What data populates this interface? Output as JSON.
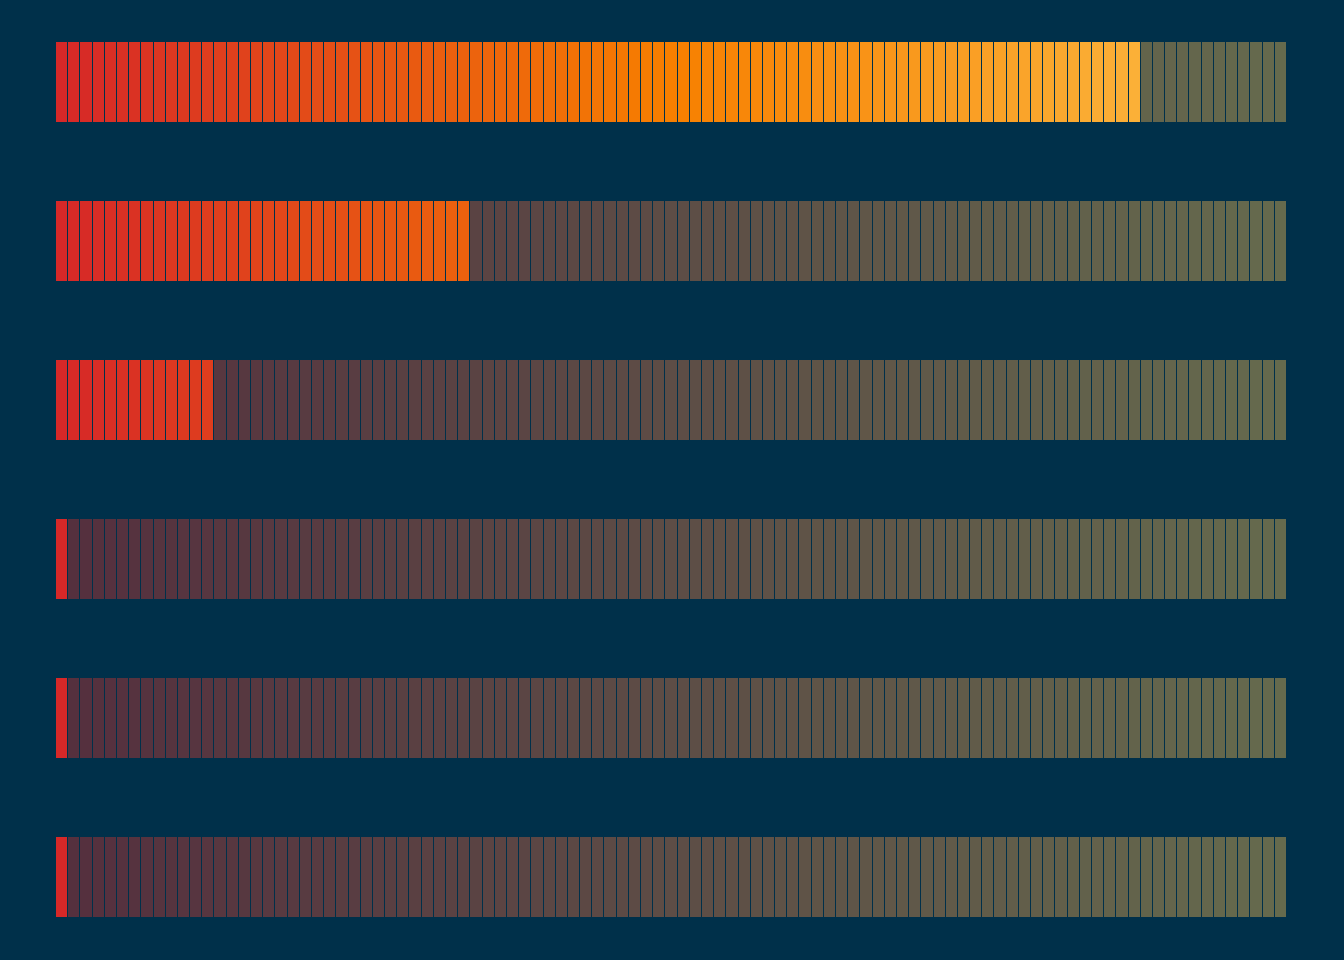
{
  "colors": {
    "background": "#00304a",
    "lit_start": "#d62828",
    "lit_mid": "#f77f00",
    "lit_end": "#fcbf49",
    "unlit_start": "#552f3e",
    "unlit_end": "#656a4d",
    "separator": "#00304a"
  },
  "meters": [
    {
      "level": 0.882
    },
    {
      "level": 0.336
    },
    {
      "level": 0.128
    },
    {
      "level": 0.008
    },
    {
      "level": 0.008
    },
    {
      "level": 0.008
    }
  ]
}
